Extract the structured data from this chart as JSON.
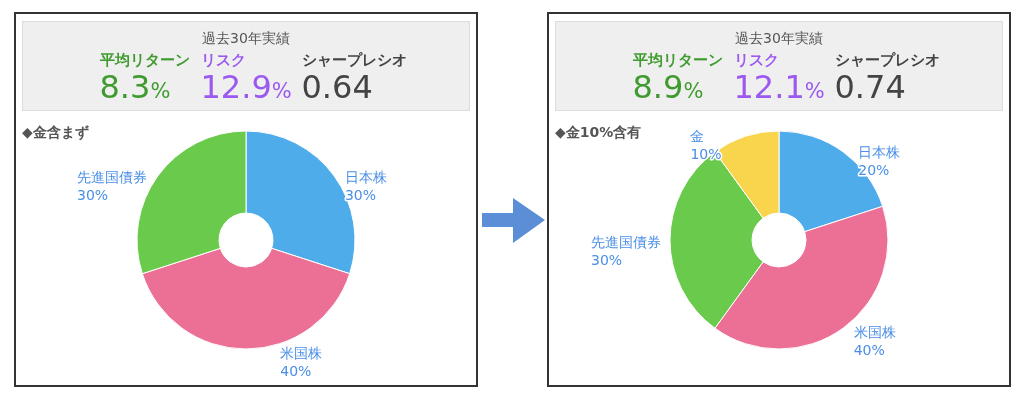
{
  "chart_data": [
    {
      "type": "other",
      "title": "過去30年実績",
      "categories": [
        "平均リターン",
        "リスク",
        "シャープレシオ"
      ],
      "values": [
        8.3,
        12.9,
        0.64
      ],
      "value_labels": [
        "8.3%",
        "12.9%",
        "0.64"
      ]
    },
    {
      "type": "donut",
      "title": "◆金含まず",
      "categories": [
        "日本株",
        "米国株",
        "先進国債券"
      ],
      "values": [
        30,
        40,
        30
      ],
      "value_labels": [
        "30%",
        "40%",
        "30%"
      ],
      "colors": [
        "#4eacea",
        "#ec6f96",
        "#6aca4c"
      ]
    },
    {
      "type": "other",
      "title": "過去30年実績",
      "categories": [
        "平均リターン",
        "リスク",
        "シャープレシオ"
      ],
      "values": [
        8.9,
        12.1,
        0.74
      ],
      "value_labels": [
        "8.9%",
        "12.1%",
        "0.74"
      ]
    },
    {
      "type": "donut",
      "title": "◆金10%含有",
      "categories": [
        "日本株",
        "米国株",
        "先進国債券",
        "金"
      ],
      "values": [
        20,
        40,
        30,
        10
      ],
      "value_labels": [
        "20%",
        "40%",
        "30%",
        "10%"
      ],
      "colors": [
        "#4eacea",
        "#ec6f96",
        "#6aca4c",
        "#f8d54c"
      ]
    }
  ]
}
